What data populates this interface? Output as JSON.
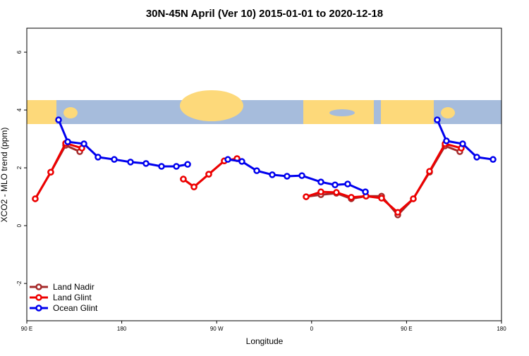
{
  "chart_data": {
    "type": "line",
    "title": "30N-45N April (Ver 10)   2015-01-01 to 2020-12-18",
    "x_label": "Longitude",
    "y_label": "XCO2 - MLO trend (ppm)",
    "xlim": [
      90,
      540
    ],
    "ylim": [
      -3.29,
      6.83
    ],
    "xticks": [
      {
        "value": 90,
        "label": "90 E"
      },
      180,
      {
        "value": 270,
        "label": "90 W"
      },
      {
        "value": 360,
        "label": "0"
      },
      {
        "value": 450,
        "label": "90 E"
      },
      {
        "value": 540,
        "label": "180"
      }
    ],
    "yticks": [
      -2,
      0,
      2,
      4,
      6
    ],
    "legend": "bottom-left",
    "series": [
      {
        "name": "Land Nadir",
        "color": "#a52a2a",
        "x": [
          98.0,
          112.7,
          126.8,
          140.2,
          188,
          238.4,
          248.5,
          262.5,
          277.2,
          289.3,
          330,
          354.8,
          368.8,
          383.5,
          397.6,
          411.6,
          426.3,
          441.7,
          456.4,
          471.8,
          486.5,
          500.5
        ],
        "values": [
          0.93,
          1.85,
          2.78,
          2.56,
          null,
          1.61,
          1.34,
          1.78,
          2.24,
          2.32,
          null,
          1.0,
          1.07,
          1.12,
          0.93,
          1.02,
          1.02,
          0.37,
          0.93,
          1.85,
          2.76,
          2.56
        ]
      },
      {
        "name": "Land Glint",
        "color": "#ee0000",
        "x": [
          98.0,
          112.7,
          126.8,
          142.2,
          188,
          238.4,
          248.5,
          262.5,
          277.2,
          289.3,
          330,
          354.8,
          368.8,
          383.5,
          397.6,
          411.6,
          426.3,
          441.7,
          456.4,
          471.8,
          486.5,
          501.9
        ],
        "values": [
          0.93,
          1.85,
          2.85,
          2.68,
          null,
          1.61,
          1.34,
          1.78,
          2.24,
          2.32,
          null,
          1.0,
          1.17,
          1.15,
          0.98,
          1.02,
          0.95,
          0.46,
          0.93,
          1.88,
          2.83,
          2.68
        ]
      },
      {
        "name": "Ocean Glint",
        "color": "#0000ee",
        "x": [
          120.1,
          128.8,
          144.2,
          157.5,
          172.9,
          188.3,
          203.0,
          217.7,
          231.8,
          242.5,
          262,
          280.6,
          293.9,
          308.0,
          322.7,
          336.7,
          350.8,
          368.8,
          382.2,
          394.2,
          411.0,
          480,
          479.1,
          487.8,
          503.2,
          516.6,
          532.0
        ],
        "values": [
          3.66,
          2.9,
          2.83,
          2.37,
          2.29,
          2.2,
          2.15,
          2.05,
          2.05,
          2.12,
          null,
          2.29,
          2.22,
          1.9,
          1.76,
          1.71,
          1.73,
          1.51,
          1.41,
          1.44,
          1.17,
          null,
          3.66,
          2.93,
          2.83,
          2.37,
          2.29
        ]
      }
    ]
  }
}
